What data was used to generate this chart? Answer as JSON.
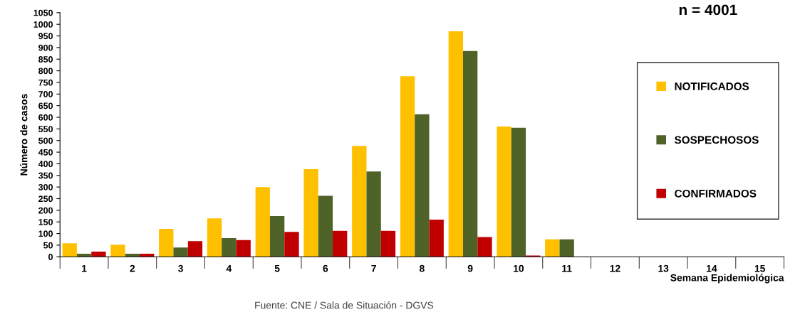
{
  "chart_data": {
    "type": "bar",
    "categories": [
      "1",
      "2",
      "3",
      "4",
      "5",
      "6",
      "7",
      "8",
      "9",
      "10",
      "11",
      "12",
      "13",
      "14",
      "15"
    ],
    "series": [
      {
        "name": "NOTIFICADOS",
        "color": "#ffc000",
        "values": [
          58,
          52,
          120,
          165,
          300,
          377,
          477,
          777,
          970,
          560,
          75,
          0,
          0,
          0,
          0
        ]
      },
      {
        "name": "SOSPECHOSOS",
        "color": "#4f6228",
        "values": [
          13,
          13,
          40,
          80,
          175,
          262,
          367,
          613,
          885,
          555,
          75,
          0,
          0,
          0,
          0
        ]
      },
      {
        "name": "CONFIRMADOS",
        "color": "#c00000",
        "values": [
          22,
          13,
          67,
          72,
          107,
          112,
          112,
          160,
          85,
          5,
          0,
          0,
          0,
          0,
          0
        ]
      }
    ],
    "xlabel": "Semana Epidemiológica",
    "ylabel": "Número de casos",
    "ylim": [
      0,
      1050
    ],
    "yticks": [
      0,
      50,
      100,
      150,
      200,
      250,
      300,
      350,
      400,
      450,
      500,
      550,
      600,
      650,
      700,
      750,
      800,
      850,
      900,
      950,
      1000,
      1050
    ],
    "grid": false,
    "legend": "right",
    "annotations": [
      "n = 4001",
      "Fuente: CNE / Sala de Situación - DGVS"
    ]
  }
}
